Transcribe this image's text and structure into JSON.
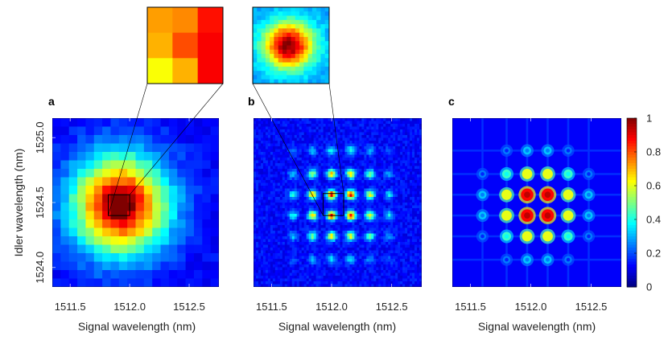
{
  "colors": {
    "jet": [
      "#00007f",
      "#0000ff",
      "#007fff",
      "#00ffff",
      "#7fff7f",
      "#ffff00",
      "#ff7f00",
      "#ff0000",
      "#7f0000"
    ],
    "frame": "#000000"
  },
  "chart_data": [
    {
      "type": "heatmap",
      "panel_label": "a",
      "xlabel": "Signal wavelength (nm)",
      "ylabel": "Idler wavelength (nm)",
      "x_ticks": [
        "1511.5",
        "1512.0",
        "1512.5"
      ],
      "x_tick_values": [
        1511.5,
        1512.0,
        1512.5
      ],
      "y_ticks": [
        "1525.0",
        "1524.5",
        "1524.0"
      ],
      "y_tick_values": [
        1525.0,
        1524.5,
        1524.0
      ],
      "xlim": [
        1511.35,
        1512.75
      ],
      "ylim": [
        1523.85,
        1525.15
      ],
      "grid_cells": [
        20,
        20
      ],
      "peak": {
        "x": 1511.92,
        "y": 1524.48,
        "value": 1.0
      },
      "inset": {
        "type": "heatmap",
        "cells": [
          3,
          3
        ],
        "zoom_of": [
          1511.82,
          1512.0,
          1524.4,
          1524.56
        ]
      }
    },
    {
      "type": "heatmap",
      "panel_label": "b",
      "xlabel": "Signal wavelength (nm)",
      "x_ticks": [
        "1511.5",
        "1512.0",
        "1512.5"
      ],
      "x_tick_values": [
        1511.5,
        1512.0,
        1512.5
      ],
      "xlim": [
        1511.35,
        1512.75
      ],
      "ylim": [
        1523.85,
        1525.15
      ],
      "lattice_x": [
        1511.68,
        1511.84,
        1512.0,
        1512.16,
        1512.32,
        1512.48
      ],
      "lattice_y": [
        1524.9,
        1524.72,
        1524.56,
        1524.4,
        1524.24,
        1524.06
      ],
      "inset": {
        "type": "heatmap",
        "zoom_of": [
          1511.93,
          1512.1,
          1524.4,
          1524.57
        ]
      }
    },
    {
      "type": "heatmap",
      "panel_label": "c",
      "xlabel": "Signal wavelength (nm)",
      "x_ticks": [
        "1511.5",
        "1512.0",
        "1512.5"
      ],
      "x_tick_values": [
        1511.5,
        1512.0,
        1512.5
      ],
      "xlim": [
        1511.35,
        1512.75
      ],
      "ylim": [
        1523.85,
        1525.15
      ],
      "lattice_x": [
        1511.6,
        1511.8,
        1511.97,
        1512.14,
        1512.31,
        1512.48
      ],
      "lattice_y": [
        1524.9,
        1524.72,
        1524.56,
        1524.4,
        1524.24,
        1524.06
      ],
      "colorbar": {
        "ticks": [
          "1",
          "0.8",
          "0.6",
          "0.4",
          "0.2",
          "0"
        ],
        "tick_values": [
          1,
          0.8,
          0.6,
          0.4,
          0.2,
          0
        ],
        "range": [
          0,
          1
        ]
      }
    }
  ]
}
